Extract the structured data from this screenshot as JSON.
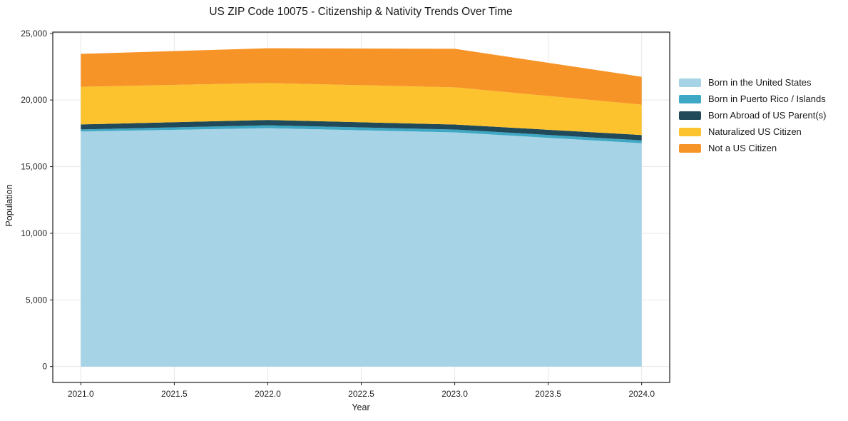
{
  "title": "US ZIP Code 10075 - Citizenship & Nativity Trends Over Time",
  "chart_data": {
    "type": "area",
    "stacked": true,
    "title": "US ZIP Code 10075 - Citizenship & Nativity Trends Over Time",
    "xlabel": "Year",
    "ylabel": "Population",
    "x": [
      2021,
      2022,
      2023,
      2024
    ],
    "series": [
      {
        "name": "Born in the United States",
        "color": "#a6d3e6",
        "values": [
          17640,
          17890,
          17570,
          16760
        ]
      },
      {
        "name": "Born in Puerto Rico / Islands",
        "color": "#3fa8c4",
        "values": [
          150,
          215,
          215,
          215
        ]
      },
      {
        "name": "Born Abroad of US Parent(s)",
        "color": "#20495a",
        "values": [
          375,
          400,
          375,
          400
        ]
      },
      {
        "name": "Naturalized US Citizen",
        "color": "#fcc32e",
        "values": [
          2830,
          2770,
          2790,
          2280
        ]
      },
      {
        "name": "Not a US Citizen",
        "color": "#f79428",
        "values": [
          2470,
          2610,
          2895,
          2090
        ]
      }
    ],
    "totals": [
      23465,
      23885,
      23845,
      21745
    ],
    "xlim": [
      2020.85,
      2024.15
    ],
    "ylim": [
      -1196,
      25096
    ],
    "x_ticks": {
      "values": [
        2021.0,
        2021.5,
        2022.0,
        2022.5,
        2023.0,
        2023.5,
        2024.0
      ],
      "labels": [
        "2021.0",
        "2021.5",
        "2022.0",
        "2022.5",
        "2023.0",
        "2023.5",
        "2024.0"
      ]
    },
    "y_ticks": {
      "values": [
        0,
        5000,
        10000,
        15000,
        20000,
        25000
      ],
      "labels": [
        "0",
        "5,000",
        "10,000",
        "15,000",
        "20,000",
        "25,000"
      ]
    },
    "grid": true,
    "legend_position": "right-outside",
    "colors": {
      "grid": "#e8e8e8",
      "spine": "#1a1a1a",
      "tick_label": "#262626"
    }
  }
}
